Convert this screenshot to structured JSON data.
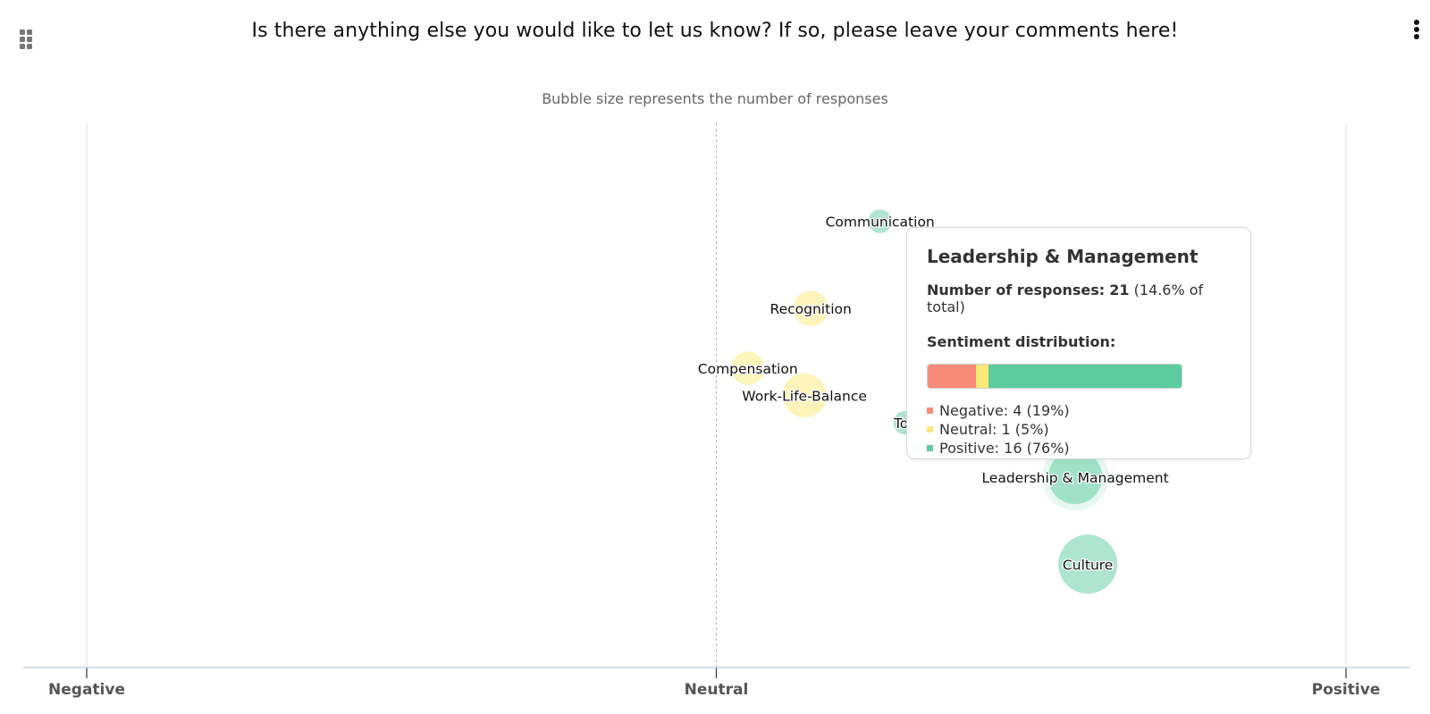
{
  "header": {
    "question": "Is there anything else you would like to let us know? If so, please leave your comments here!",
    "drag_icon": "drag-grid-icon",
    "menu_icon": "more-vertical-icon"
  },
  "colors": {
    "negative": "#f88a7a",
    "neutral": "#fbe978",
    "positive": "#5ccc9e"
  },
  "chart_data": {
    "type": "scatter",
    "subtitle": "Bubble size represents the number of responses",
    "xaxis": {
      "labels": [
        "Negative",
        "Neutral",
        "Positive"
      ],
      "range": [
        -1,
        1
      ]
    },
    "size_encoding": "number of responses",
    "series": [
      {
        "name": "Communication",
        "x": 0.26,
        "y": 0.82,
        "size": 4,
        "color": "positive"
      },
      {
        "name": "Recognition",
        "x": 0.15,
        "y": 0.66,
        "size": 9,
        "color": "neutral"
      },
      {
        "name": "Compensation",
        "x": 0.05,
        "y": 0.55,
        "size": 8,
        "color": "neutral"
      },
      {
        "name": "Work-Life-Balance",
        "x": 0.14,
        "y": 0.5,
        "size": 14,
        "color": "neutral"
      },
      {
        "name": "Too",
        "x": 0.3,
        "y": 0.45,
        "size": 4,
        "color": "positive"
      },
      {
        "name": "Leadership & Management",
        "x": 0.57,
        "y": 0.35,
        "size": 21,
        "color": "positive"
      },
      {
        "name": "Culture",
        "x": 0.59,
        "y": 0.19,
        "size": 25,
        "color": "positive"
      }
    ]
  },
  "tooltip": {
    "title": "Leadership & Management",
    "responses_label": "Number of responses:",
    "responses_count": "21",
    "responses_pct": "(14.6% of total)",
    "distribution_label": "Sentiment distribution:",
    "segments": [
      {
        "label": "Negative: 4 (19%)",
        "fraction": 0.19,
        "color": "negative"
      },
      {
        "label": "Neutral: 1 (5%)",
        "fraction": 0.05,
        "color": "neutral"
      },
      {
        "label": "Positive: 16 (76%)",
        "fraction": 0.76,
        "color": "positive"
      }
    ]
  }
}
